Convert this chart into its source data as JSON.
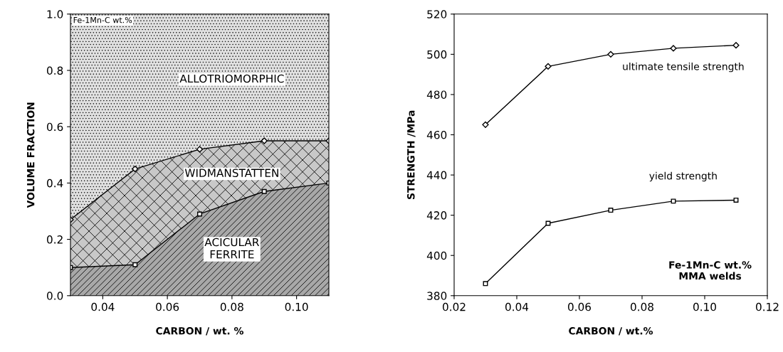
{
  "chart_data": [
    {
      "type": "area",
      "stacked": true,
      "xlabel": "CARBON / wt. %",
      "ylabel": "VOLUME FRACTION",
      "x": [
        0.03,
        0.05,
        0.07,
        0.09,
        0.11
      ],
      "xlim": [
        0.03,
        0.11
      ],
      "xticks": [
        0.04,
        0.06,
        0.08,
        {
          "value": 0.1,
          "label": "0.10"
        }
      ],
      "ylim": [
        0,
        1.0
      ],
      "yticks": [
        {
          "value": 0,
          "label": "0.0"
        },
        0.2,
        0.4,
        0.6,
        0.8,
        {
          "value": 1.0,
          "label": "1.0"
        }
      ],
      "grid": false,
      "legend": false,
      "annotations": [
        "Fe-1Mn-C wt.%"
      ],
      "series": [
        {
          "name": "ACICULAR\nFERRITE",
          "color": "#a8a8a8",
          "marker": "square",
          "values": [
            0.1,
            0.11,
            0.29,
            0.37,
            0.4
          ]
        },
        {
          "name": "WIDMANSTATTEN",
          "color": "#c8c8c8",
          "marker": "diamond",
          "values": [
            0.17,
            0.34,
            0.23,
            0.18,
            0.15
          ]
        },
        {
          "name": "ALLOTRIOMORPHIC",
          "color": "#e0e0e0",
          "marker": "none",
          "values": [
            0.73,
            0.55,
            0.48,
            0.45,
            0.45
          ]
        }
      ]
    },
    {
      "type": "line",
      "xlabel": "CARBON / wt.%",
      "ylabel": "STRENGTH /MPa",
      "x": [
        0.03,
        0.05,
        0.07,
        0.09,
        0.11
      ],
      "xlim": [
        0.02,
        0.12
      ],
      "xticks": [
        0.02,
        0.04,
        0.06,
        0.08,
        {
          "value": 0.1,
          "label": "0.10"
        },
        0.12
      ],
      "ylim": [
        380,
        520
      ],
      "yticks": [
        380,
        400,
        420,
        440,
        460,
        480,
        500,
        520
      ],
      "grid": false,
      "legend": false,
      "annotations": [
        "Fe-1Mn-C wt.%\nMMA welds"
      ],
      "series": [
        {
          "name": "ultimate tensile strength",
          "color": "#000000",
          "marker": "diamond",
          "values": [
            465,
            494,
            500,
            503,
            504.5
          ]
        },
        {
          "name": "yield strength",
          "color": "#000000",
          "marker": "square",
          "values": [
            386,
            416,
            422.5,
            427,
            427.5
          ]
        }
      ]
    }
  ]
}
